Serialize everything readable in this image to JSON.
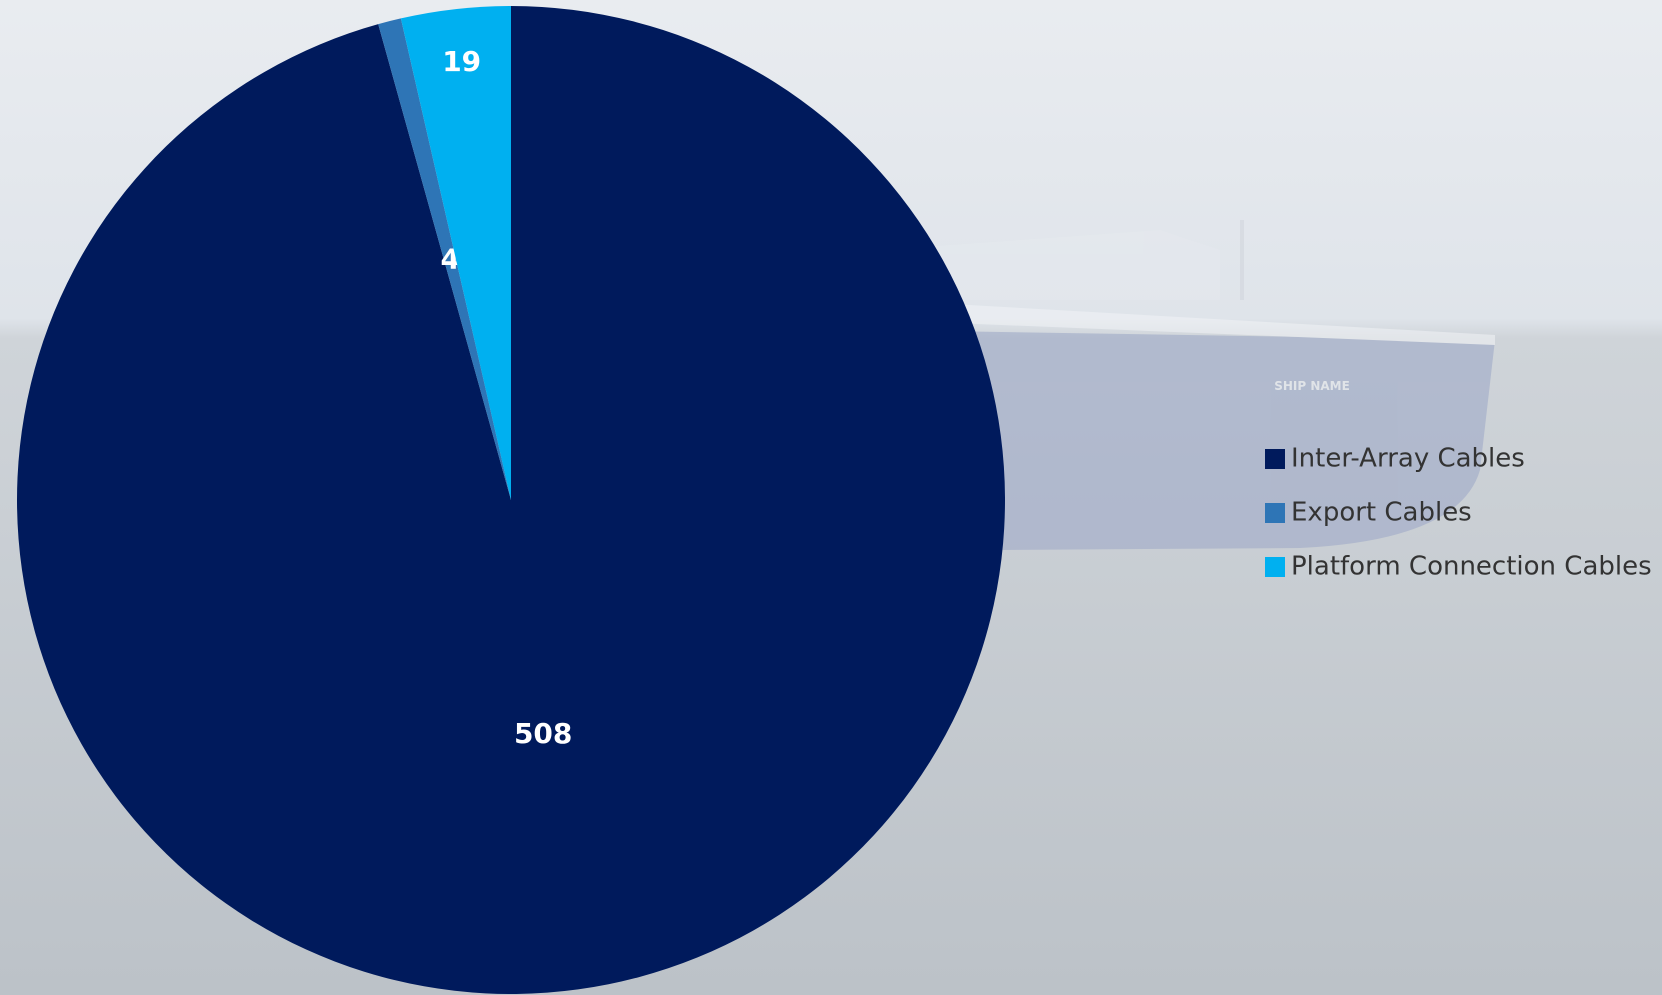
{
  "chart_data": {
    "type": "pie",
    "series": [
      {
        "name": "Inter-Array Cables",
        "color": "#001a5c",
        "values": [
          508
        ]
      },
      {
        "name": "Export Cables",
        "color": "#2e75b6",
        "values": [
          4
        ]
      },
      {
        "name": "Platform Connection Cables",
        "color": "#00b0f0",
        "values": [
          19
        ]
      }
    ],
    "legend": "right"
  },
  "background": {
    "ship_text": "SHIP NAME"
  }
}
